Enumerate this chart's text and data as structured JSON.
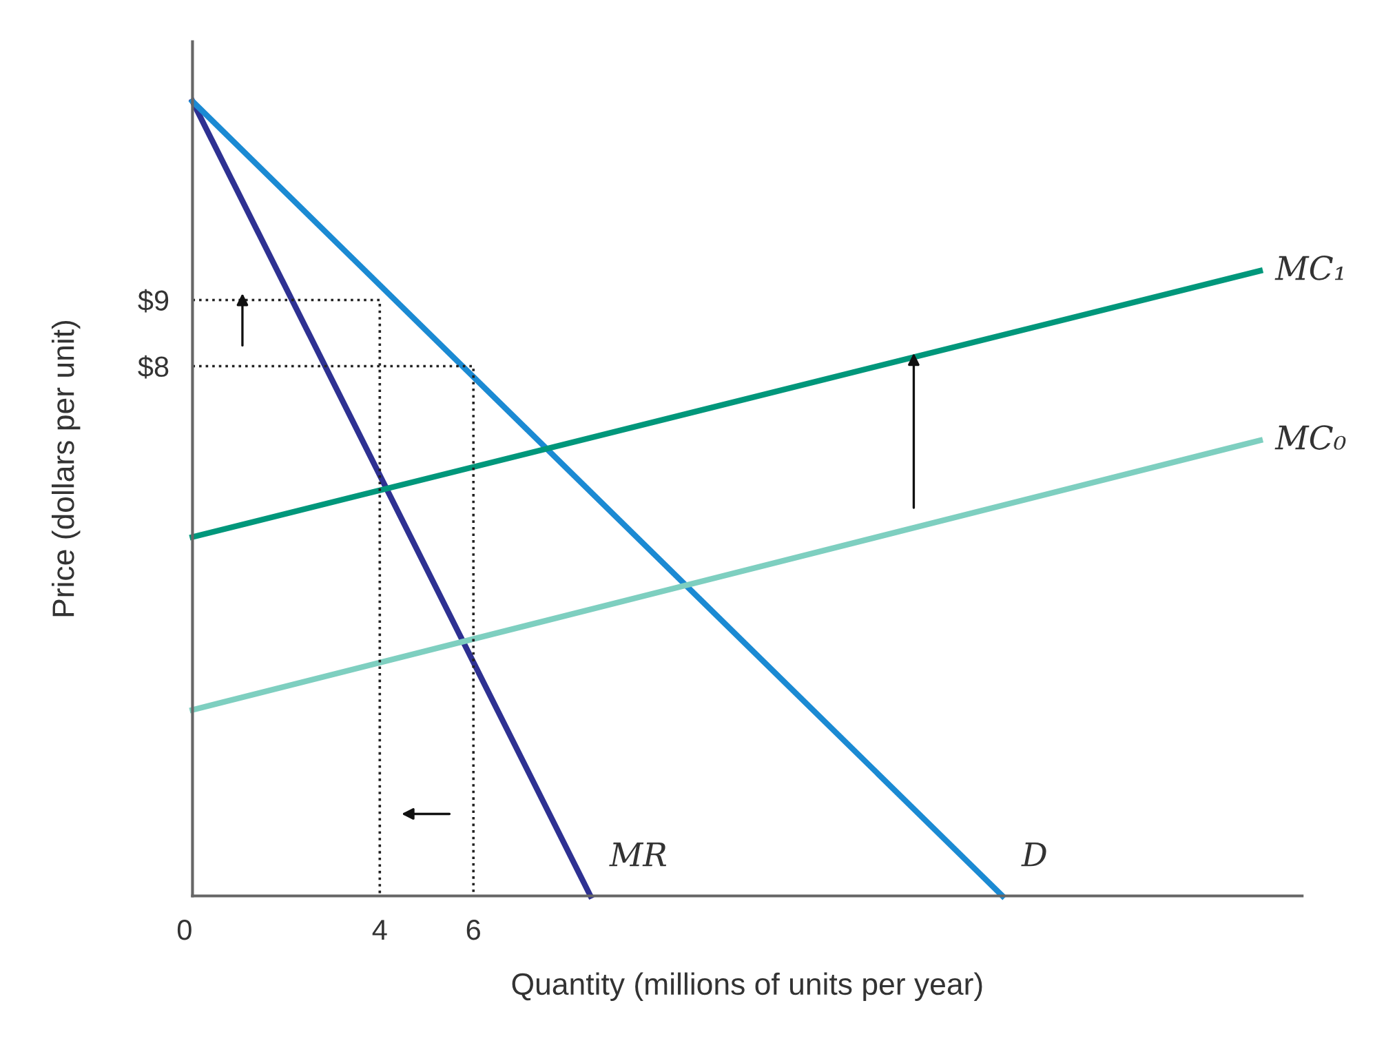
{
  "chart_data": {
    "type": "line",
    "xlabel": "Quantity (millions of units per year)",
    "ylabel": "Price (dollars per unit)",
    "xlim": [
      0,
      23.7
    ],
    "ylim": [
      0,
      12.9
    ],
    "xticks": [
      0,
      4,
      6
    ],
    "yticks": [
      {
        "value": 0,
        "label": null
      },
      {
        "value": 8,
        "label": "$8"
      },
      {
        "value": 9,
        "label": "$9"
      }
    ],
    "grid": false,
    "legend": false,
    "marker": "none",
    "series": [
      {
        "name": "MR",
        "color": "#2e3192",
        "x": [
          0,
          8.5
        ],
        "values": [
          12,
          0
        ],
        "line_style": "solid"
      },
      {
        "name": "D",
        "color": "#1b8ad3",
        "x": [
          0,
          17.3
        ],
        "values": [
          12,
          0
        ],
        "line_style": "solid"
      },
      {
        "name": "MC₁",
        "color": "#00977b",
        "x": [
          0,
          22.8
        ],
        "values": [
          5.42,
          9.44
        ],
        "line_style": "solid"
      },
      {
        "name": "MC₀",
        "color": "#7ecfc0",
        "x": [
          0,
          22.8
        ],
        "values": [
          2.81,
          6.88
        ],
        "line_style": "solid"
      },
      {
        "color": "#222222",
        "x": [
          0,
          4,
          4
        ],
        "values": [
          9,
          9,
          0
        ],
        "line_style": "dotted"
      },
      {
        "color": "#222222",
        "x": [
          0,
          6,
          6
        ],
        "values": [
          8,
          8,
          0
        ],
        "line_style": "dotted"
      }
    ]
  }
}
